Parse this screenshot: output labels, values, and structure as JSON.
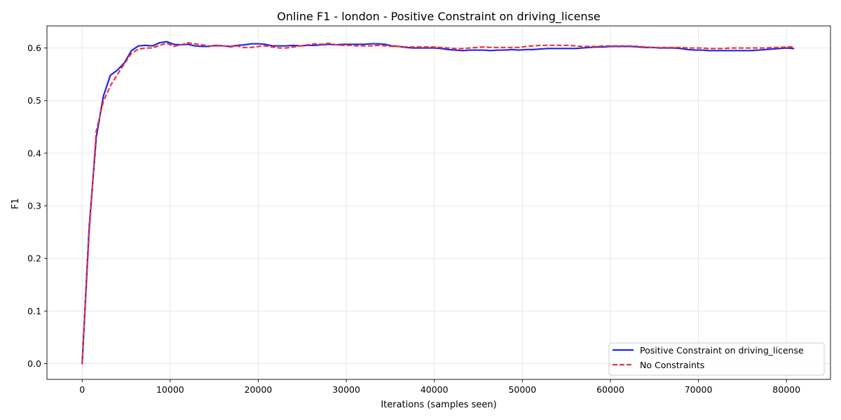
{
  "chart_data": {
    "type": "line",
    "title": "Online F1 - london - Positive Constraint on driving_license",
    "xlabel": "Iterations (samples seen)",
    "ylabel": "F1",
    "xlim": [
      -4000,
      85000
    ],
    "ylim": [
      -0.03,
      0.642
    ],
    "xticks": [
      0,
      10000,
      20000,
      30000,
      40000,
      50000,
      60000,
      70000,
      80000
    ],
    "xtick_labels": [
      "0",
      "10000",
      "20000",
      "30000",
      "40000",
      "50000",
      "60000",
      "70000",
      "80000"
    ],
    "yticks": [
      0.0,
      0.1,
      0.2,
      0.3,
      0.4,
      0.5,
      0.6
    ],
    "ytick_labels": [
      "0.0",
      "0.1",
      "0.2",
      "0.3",
      "0.4",
      "0.5",
      "0.6"
    ],
    "grid": true,
    "legend_position": "bottom-right",
    "series": [
      {
        "name": "Positive Constraint on driving_license",
        "color": "#2323e6",
        "style": "solid",
        "x": [
          0,
          800,
          1600,
          2400,
          3200,
          4000,
          4800,
          5600,
          6400,
          7200,
          8000,
          8800,
          9600,
          10400,
          11200,
          12000,
          12800,
          13600,
          14400,
          15200,
          16000,
          16800,
          17600,
          18400,
          19200,
          20000,
          20800,
          21600,
          22400,
          23200,
          24000,
          24800,
          25600,
          26400,
          27200,
          28000,
          28800,
          29600,
          30400,
          31200,
          32000,
          32800,
          33600,
          34400,
          35200,
          36000,
          36800,
          37600,
          38400,
          39200,
          40000,
          40800,
          41600,
          42400,
          43200,
          44000,
          44800,
          45600,
          46400,
          47200,
          48000,
          48800,
          49600,
          50400,
          51200,
          52000,
          52800,
          53600,
          54400,
          55200,
          56000,
          56800,
          57600,
          58400,
          59200,
          60000,
          60800,
          61600,
          62400,
          63200,
          64000,
          64800,
          65600,
          66400,
          67200,
          68000,
          68800,
          69600,
          70400,
          71200,
          72000,
          72800,
          73600,
          74400,
          75200,
          76000,
          76800,
          77600,
          78400,
          79200,
          80000,
          80800
        ],
        "y": [
          0.0,
          0.26,
          0.43,
          0.508,
          0.548,
          0.558,
          0.572,
          0.595,
          0.604,
          0.605,
          0.604,
          0.61,
          0.612,
          0.607,
          0.606,
          0.607,
          0.604,
          0.603,
          0.603,
          0.605,
          0.604,
          0.603,
          0.605,
          0.606,
          0.608,
          0.608,
          0.607,
          0.604,
          0.604,
          0.604,
          0.605,
          0.604,
          0.605,
          0.605,
          0.606,
          0.607,
          0.606,
          0.607,
          0.607,
          0.607,
          0.607,
          0.608,
          0.608,
          0.607,
          0.604,
          0.603,
          0.601,
          0.6,
          0.6,
          0.6,
          0.6,
          0.599,
          0.597,
          0.596,
          0.595,
          0.596,
          0.596,
          0.596,
          0.595,
          0.596,
          0.596,
          0.597,
          0.596,
          0.597,
          0.597,
          0.598,
          0.599,
          0.599,
          0.599,
          0.599,
          0.599,
          0.6,
          0.601,
          0.602,
          0.602,
          0.603,
          0.603,
          0.603,
          0.603,
          0.602,
          0.601,
          0.601,
          0.6,
          0.6,
          0.6,
          0.599,
          0.597,
          0.596,
          0.596,
          0.595,
          0.595,
          0.595,
          0.595,
          0.595,
          0.595,
          0.595,
          0.596,
          0.597,
          0.598,
          0.599,
          0.6,
          0.599
        ]
      },
      {
        "name": "No Constraints",
        "color": "#ee3535",
        "style": "dashed",
        "x": [
          0,
          800,
          1600,
          2400,
          3200,
          4000,
          4800,
          5600,
          6400,
          7200,
          8000,
          8800,
          9600,
          10400,
          11200,
          12000,
          12800,
          13600,
          14400,
          15200,
          16000,
          16800,
          17600,
          18400,
          19200,
          20000,
          20800,
          21600,
          22400,
          23200,
          24000,
          24800,
          25600,
          26400,
          27200,
          28000,
          28800,
          29600,
          30400,
          31200,
          32000,
          32800,
          33600,
          34400,
          35200,
          36000,
          36800,
          37600,
          38400,
          39200,
          40000,
          40800,
          41600,
          42400,
          43200,
          44000,
          44800,
          45600,
          46400,
          47200,
          48000,
          48800,
          49600,
          50400,
          51200,
          52000,
          52800,
          53600,
          54400,
          55200,
          56000,
          56800,
          57600,
          58400,
          59200,
          60000,
          60800,
          61600,
          62400,
          63200,
          64000,
          64800,
          65600,
          66400,
          67200,
          68000,
          68800,
          69600,
          70400,
          71200,
          72000,
          72800,
          73600,
          74400,
          75200,
          76000,
          76800,
          77600,
          78400,
          79200,
          80000,
          80800
        ],
        "y": [
          0.0,
          0.25,
          0.442,
          0.498,
          0.528,
          0.55,
          0.57,
          0.59,
          0.598,
          0.6,
          0.6,
          0.605,
          0.609,
          0.603,
          0.606,
          0.61,
          0.608,
          0.606,
          0.604,
          0.604,
          0.604,
          0.602,
          0.604,
          0.601,
          0.601,
          0.603,
          0.604,
          0.602,
          0.6,
          0.6,
          0.602,
          0.604,
          0.606,
          0.608,
          0.607,
          0.609,
          0.606,
          0.605,
          0.605,
          0.604,
          0.604,
          0.604,
          0.605,
          0.604,
          0.603,
          0.603,
          0.602,
          0.602,
          0.602,
          0.602,
          0.602,
          0.601,
          0.6,
          0.599,
          0.599,
          0.6,
          0.601,
          0.602,
          0.601,
          0.601,
          0.601,
          0.601,
          0.601,
          0.603,
          0.604,
          0.605,
          0.605,
          0.605,
          0.605,
          0.605,
          0.604,
          0.603,
          0.603,
          0.603,
          0.604,
          0.604,
          0.604,
          0.604,
          0.604,
          0.603,
          0.602,
          0.601,
          0.601,
          0.601,
          0.601,
          0.601,
          0.6,
          0.6,
          0.6,
          0.599,
          0.599,
          0.599,
          0.6,
          0.6,
          0.6,
          0.6,
          0.6,
          0.6,
          0.601,
          0.601,
          0.602,
          0.602
        ]
      }
    ]
  }
}
